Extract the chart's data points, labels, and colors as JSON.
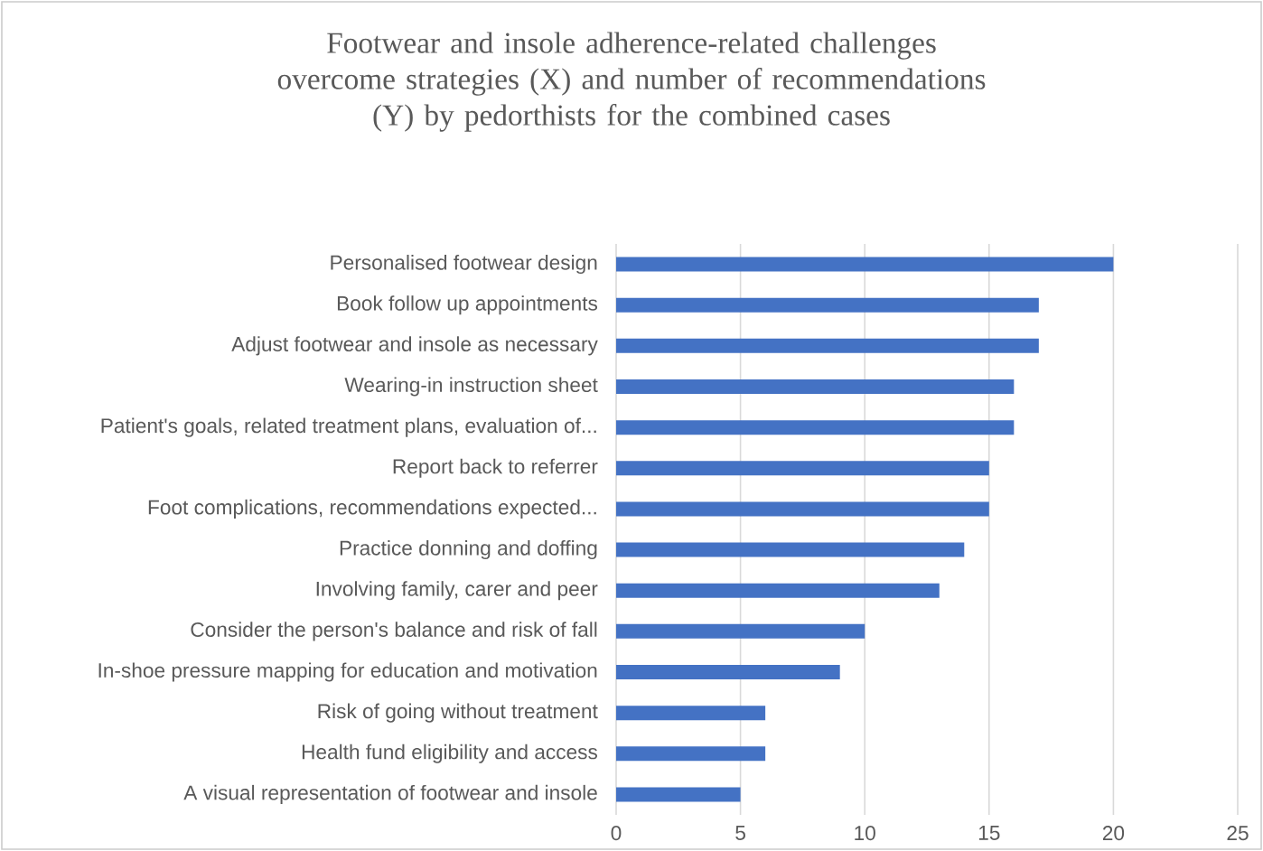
{
  "chart_data": {
    "type": "bar",
    "orientation": "horizontal",
    "title": "Footwear and insole adherence-related challenges overcome strategies (X) and number of recommendations (Y) by pedorthists for the combined cases",
    "categories": [
      "Personalised footwear design",
      "Book follow up appointments",
      "Adjust footwear and insole as necessary",
      "Wearing-in instruction sheet",
      "Patient's goals, related treatment plans, evaluation of...",
      "Report back to referrer",
      "Foot complications, recommendations expected...",
      "Practice donning and doffing",
      "Involving family, carer and peer",
      "Consider the person's balance and risk of fall",
      "In-shoe pressure mapping for education and motivation",
      "Risk of going without treatment",
      "Health fund eligibility and access",
      "A visual representation of footwear and insole"
    ],
    "values": [
      20,
      17,
      17,
      16,
      16,
      15,
      15,
      14,
      13,
      10,
      9,
      6,
      6,
      5
    ],
    "color": "#4472c4",
    "xlim": [
      0,
      25
    ],
    "xticks": [
      0,
      5,
      10,
      15,
      20,
      25
    ],
    "grid": "x"
  }
}
